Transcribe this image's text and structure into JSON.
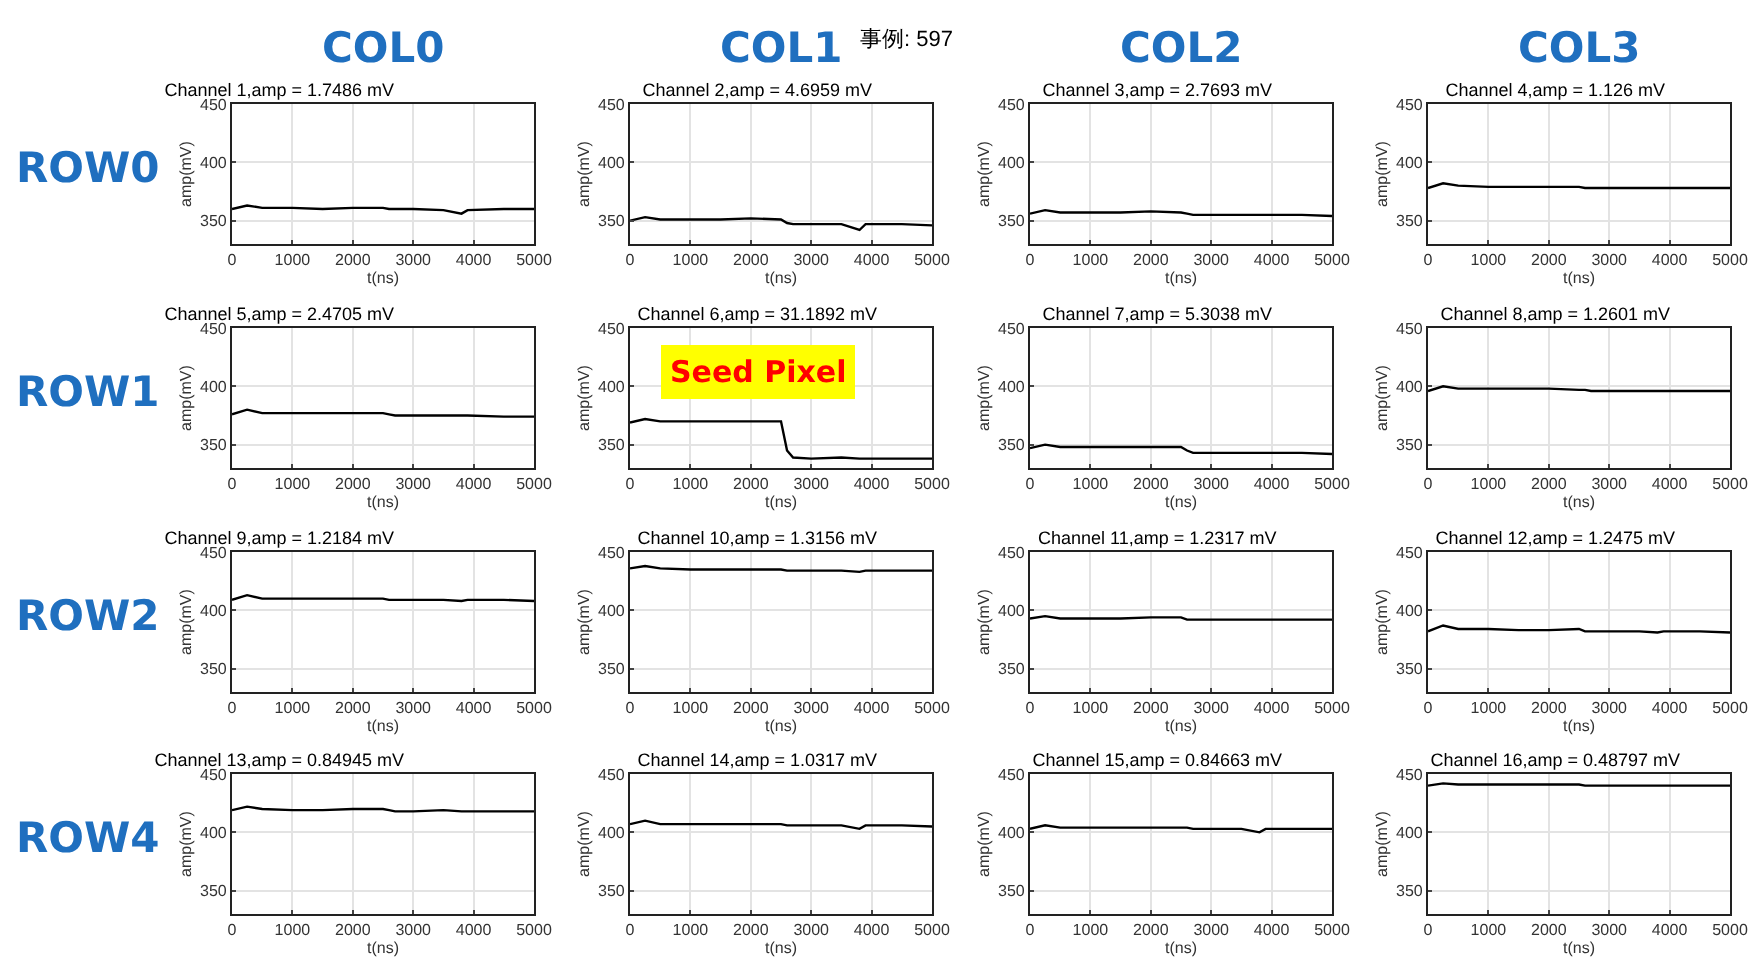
{
  "chart_data": [
    {
      "type": "line",
      "title": "Channel 1,amp = 1.7486 mV",
      "xlabel": "t(ns)",
      "ylabel": "amp(mV)",
      "xlim": [
        0,
        5000
      ],
      "ylim": [
        330,
        450
      ],
      "xticks": [
        0,
        1000,
        2000,
        3000,
        4000,
        5000
      ],
      "yticks": [
        350,
        400,
        450
      ],
      "grid": true,
      "color": "#000000",
      "annotations": [
        "COL0",
        "ROW0"
      ],
      "x": [
        0,
        250,
        500,
        1000,
        1500,
        2000,
        2500,
        2600,
        2700,
        3000,
        3500,
        3800,
        3900,
        4500,
        5000
      ],
      "values": [
        360,
        363,
        361,
        361,
        360,
        361,
        361,
        360,
        360,
        360,
        359,
        356,
        359,
        360,
        360
      ]
    },
    {
      "type": "line",
      "title": "Channel 2,amp = 4.6959 mV",
      "xlabel": "t(ns)",
      "ylabel": "amp(mV)",
      "xlim": [
        0,
        5000
      ],
      "ylim": [
        330,
        450
      ],
      "xticks": [
        0,
        1000,
        2000,
        3000,
        4000,
        5000
      ],
      "yticks": [
        350,
        400,
        450
      ],
      "grid": true,
      "color": "#000000",
      "annotations": [
        "COL1",
        "事例: 597"
      ],
      "x": [
        0,
        250,
        500,
        1000,
        1500,
        2000,
        2500,
        2600,
        2700,
        3000,
        3500,
        3800,
        3900,
        4500,
        5000
      ],
      "values": [
        350,
        353,
        351,
        351,
        351,
        352,
        351,
        348,
        347,
        347,
        347,
        342,
        347,
        347,
        346
      ]
    },
    {
      "type": "line",
      "title": "Channel 3,amp = 2.7693 mV",
      "xlabel": "t(ns)",
      "ylabel": "amp(mV)",
      "xlim": [
        0,
        5000
      ],
      "ylim": [
        330,
        450
      ],
      "xticks": [
        0,
        1000,
        2000,
        3000,
        4000,
        5000
      ],
      "yticks": [
        350,
        400,
        450
      ],
      "grid": true,
      "color": "#000000",
      "annotations": [
        "COL2"
      ],
      "x": [
        0,
        250,
        500,
        1000,
        1500,
        2000,
        2500,
        2600,
        2700,
        3000,
        3500,
        3800,
        3900,
        4500,
        5000
      ],
      "values": [
        356,
        359,
        357,
        357,
        357,
        358,
        357,
        356,
        355,
        355,
        355,
        355,
        355,
        355,
        354
      ]
    },
    {
      "type": "line",
      "title": "Channel 4,amp = 1.126 mV",
      "xlabel": "t(ns)",
      "ylabel": "amp(mV)",
      "xlim": [
        0,
        5000
      ],
      "ylim": [
        330,
        450
      ],
      "xticks": [
        0,
        1000,
        2000,
        3000,
        4000,
        5000
      ],
      "yticks": [
        350,
        400,
        450
      ],
      "grid": true,
      "color": "#000000",
      "annotations": [
        "COL3"
      ],
      "x": [
        0,
        250,
        500,
        1000,
        1500,
        2000,
        2500,
        2600,
        2700,
        3000,
        3500,
        3800,
        3900,
        4500,
        5000
      ],
      "values": [
        378,
        382,
        380,
        379,
        379,
        379,
        379,
        378,
        378,
        378,
        378,
        378,
        378,
        378,
        378
      ]
    },
    {
      "type": "line",
      "title": "Channel 5,amp = 2.4705 mV",
      "xlabel": "t(ns)",
      "ylabel": "amp(mV)",
      "xlim": [
        0,
        5000
      ],
      "ylim": [
        330,
        450
      ],
      "xticks": [
        0,
        1000,
        2000,
        3000,
        4000,
        5000
      ],
      "yticks": [
        350,
        400,
        450
      ],
      "grid": true,
      "color": "#000000",
      "annotations": [
        "ROW1"
      ],
      "x": [
        0,
        250,
        500,
        1000,
        1500,
        2000,
        2500,
        2600,
        2700,
        3000,
        3500,
        3800,
        3900,
        4500,
        5000
      ],
      "values": [
        376,
        380,
        377,
        377,
        377,
        377,
        377,
        376,
        375,
        375,
        375,
        375,
        375,
        374,
        374
      ]
    },
    {
      "type": "line",
      "title": "Channel 6,amp = 31.1892 mV",
      "xlabel": "t(ns)",
      "ylabel": "amp(mV)",
      "xlim": [
        0,
        5000
      ],
      "ylim": [
        330,
        450
      ],
      "xticks": [
        0,
        1000,
        2000,
        3000,
        4000,
        5000
      ],
      "yticks": [
        350,
        400,
        450
      ],
      "grid": true,
      "color": "#000000",
      "annotations": [
        "Seed Pixel"
      ],
      "x": [
        0,
        250,
        500,
        1000,
        1500,
        2000,
        2500,
        2600,
        2700,
        3000,
        3500,
        3800,
        3900,
        4500,
        5000
      ],
      "values": [
        369,
        372,
        370,
        370,
        370,
        370,
        370,
        345,
        339,
        338,
        339,
        338,
        338,
        338,
        338
      ]
    },
    {
      "type": "line",
      "title": "Channel 7,amp = 5.3038 mV",
      "xlabel": "t(ns)",
      "ylabel": "amp(mV)",
      "xlim": [
        0,
        5000
      ],
      "ylim": [
        330,
        450
      ],
      "xticks": [
        0,
        1000,
        2000,
        3000,
        4000,
        5000
      ],
      "yticks": [
        350,
        400,
        450
      ],
      "grid": true,
      "color": "#000000",
      "x": [
        0,
        250,
        500,
        1000,
        1500,
        2000,
        2500,
        2600,
        2700,
        3000,
        3500,
        3800,
        3900,
        4500,
        5000
      ],
      "values": [
        347,
        350,
        348,
        348,
        348,
        348,
        348,
        345,
        343,
        343,
        343,
        343,
        343,
        343,
        342
      ]
    },
    {
      "type": "line",
      "title": "Channel 8,amp = 1.2601 mV",
      "xlabel": "t(ns)",
      "ylabel": "amp(mV)",
      "xlim": [
        0,
        5000
      ],
      "ylim": [
        330,
        450
      ],
      "xticks": [
        0,
        1000,
        2000,
        3000,
        4000,
        5000
      ],
      "yticks": [
        350,
        400,
        450
      ],
      "grid": true,
      "color": "#000000",
      "x": [
        0,
        250,
        500,
        1000,
        1500,
        2000,
        2500,
        2600,
        2700,
        3000,
        3500,
        3800,
        3900,
        4500,
        5000
      ],
      "values": [
        396,
        400,
        398,
        398,
        398,
        398,
        397,
        397,
        396,
        396,
        396,
        396,
        396,
        396,
        396
      ]
    },
    {
      "type": "line",
      "title": "Channel 9,amp = 1.2184 mV",
      "xlabel": "t(ns)",
      "ylabel": "amp(mV)",
      "xlim": [
        0,
        5000
      ],
      "ylim": [
        330,
        450
      ],
      "xticks": [
        0,
        1000,
        2000,
        3000,
        4000,
        5000
      ],
      "yticks": [
        350,
        400,
        450
      ],
      "grid": true,
      "color": "#000000",
      "annotations": [
        "ROW2"
      ],
      "x": [
        0,
        250,
        500,
        1000,
        1500,
        2000,
        2500,
        2600,
        2700,
        3000,
        3500,
        3800,
        3900,
        4500,
        5000
      ],
      "values": [
        409,
        413,
        410,
        410,
        410,
        410,
        410,
        409,
        409,
        409,
        409,
        408,
        409,
        409,
        408
      ]
    },
    {
      "type": "line",
      "title": "Channel 10,amp = 1.3156 mV",
      "xlabel": "t(ns)",
      "ylabel": "amp(mV)",
      "xlim": [
        0,
        5000
      ],
      "ylim": [
        330,
        450
      ],
      "xticks": [
        0,
        1000,
        2000,
        3000,
        4000,
        5000
      ],
      "yticks": [
        350,
        400,
        450
      ],
      "grid": true,
      "color": "#000000",
      "x": [
        0,
        250,
        500,
        1000,
        1500,
        2000,
        2500,
        2600,
        2700,
        3000,
        3500,
        3800,
        3900,
        4500,
        5000
      ],
      "values": [
        436,
        438,
        436,
        435,
        435,
        435,
        435,
        434,
        434,
        434,
        434,
        433,
        434,
        434,
        434
      ]
    },
    {
      "type": "line",
      "title": "Channel 11,amp = 1.2317 mV",
      "xlabel": "t(ns)",
      "ylabel": "amp(mV)",
      "xlim": [
        0,
        5000
      ],
      "ylim": [
        330,
        450
      ],
      "xticks": [
        0,
        1000,
        2000,
        3000,
        4000,
        5000
      ],
      "yticks": [
        350,
        400,
        450
      ],
      "grid": true,
      "color": "#000000",
      "x": [
        0,
        250,
        500,
        1000,
        1500,
        2000,
        2500,
        2600,
        2700,
        3000,
        3500,
        3800,
        3900,
        4500,
        5000
      ],
      "values": [
        393,
        395,
        393,
        393,
        393,
        394,
        394,
        392,
        392,
        392,
        392,
        392,
        392,
        392,
        392
      ]
    },
    {
      "type": "line",
      "title": "Channel 12,amp = 1.2475 mV",
      "xlabel": "t(ns)",
      "ylabel": "amp(mV)",
      "xlim": [
        0,
        5000
      ],
      "ylim": [
        330,
        450
      ],
      "xticks": [
        0,
        1000,
        2000,
        3000,
        4000,
        5000
      ],
      "yticks": [
        350,
        400,
        450
      ],
      "grid": true,
      "color": "#000000",
      "x": [
        0,
        250,
        500,
        1000,
        1500,
        2000,
        2500,
        2600,
        2700,
        3000,
        3500,
        3800,
        3900,
        4500,
        5000
      ],
      "values": [
        382,
        387,
        384,
        384,
        383,
        383,
        384,
        382,
        382,
        382,
        382,
        381,
        382,
        382,
        381
      ]
    },
    {
      "type": "line",
      "title": "Channel 13,amp = 0.84945 mV",
      "xlabel": "t(ns)",
      "ylabel": "amp(mV)",
      "xlim": [
        0,
        5000
      ],
      "ylim": [
        330,
        450
      ],
      "xticks": [
        0,
        1000,
        2000,
        3000,
        4000,
        5000
      ],
      "yticks": [
        350,
        400,
        450
      ],
      "grid": true,
      "color": "#000000",
      "annotations": [
        "ROW4"
      ],
      "x": [
        0,
        250,
        500,
        1000,
        1500,
        2000,
        2500,
        2600,
        2700,
        3000,
        3500,
        3800,
        3900,
        4500,
        5000
      ],
      "values": [
        419,
        422,
        420,
        419,
        419,
        420,
        420,
        419,
        418,
        418,
        419,
        418,
        418,
        418,
        418
      ]
    },
    {
      "type": "line",
      "title": "Channel 14,amp = 1.0317 mV",
      "xlabel": "t(ns)",
      "ylabel": "amp(mV)",
      "xlim": [
        0,
        5000
      ],
      "ylim": [
        330,
        450
      ],
      "xticks": [
        0,
        1000,
        2000,
        3000,
        4000,
        5000
      ],
      "yticks": [
        350,
        400,
        450
      ],
      "grid": true,
      "color": "#000000",
      "x": [
        0,
        250,
        500,
        1000,
        1500,
        2000,
        2500,
        2600,
        2700,
        3000,
        3500,
        3800,
        3900,
        4500,
        5000
      ],
      "values": [
        407,
        410,
        407,
        407,
        407,
        407,
        407,
        406,
        406,
        406,
        406,
        403,
        406,
        406,
        405
      ]
    },
    {
      "type": "line",
      "title": "Channel 15,amp = 0.84663 mV",
      "xlabel": "t(ns)",
      "ylabel": "amp(mV)",
      "xlim": [
        0,
        5000
      ],
      "ylim": [
        330,
        450
      ],
      "xticks": [
        0,
        1000,
        2000,
        3000,
        4000,
        5000
      ],
      "yticks": [
        350,
        400,
        450
      ],
      "grid": true,
      "color": "#000000",
      "x": [
        0,
        250,
        500,
        1000,
        1500,
        2000,
        2500,
        2600,
        2700,
        3000,
        3500,
        3800,
        3900,
        4500,
        5000
      ],
      "values": [
        403,
        406,
        404,
        404,
        404,
        404,
        404,
        404,
        403,
        403,
        403,
        400,
        403,
        403,
        403
      ]
    },
    {
      "type": "line",
      "title": "Channel 16,amp = 0.48797 mV",
      "xlabel": "t(ns)",
      "ylabel": "amp(mV)",
      "xlim": [
        0,
        5000
      ],
      "ylim": [
        330,
        450
      ],
      "xticks": [
        0,
        1000,
        2000,
        3000,
        4000,
        5000
      ],
      "yticks": [
        350,
        400,
        450
      ],
      "grid": true,
      "color": "#000000",
      "x": [
        0,
        250,
        500,
        1000,
        1500,
        2000,
        2500,
        2600,
        2700,
        3000,
        3500,
        3800,
        3900,
        4500,
        5000
      ],
      "values": [
        440,
        442,
        441,
        441,
        441,
        441,
        441,
        440,
        440,
        440,
        440,
        440,
        440,
        440,
        440
      ]
    }
  ]
}
